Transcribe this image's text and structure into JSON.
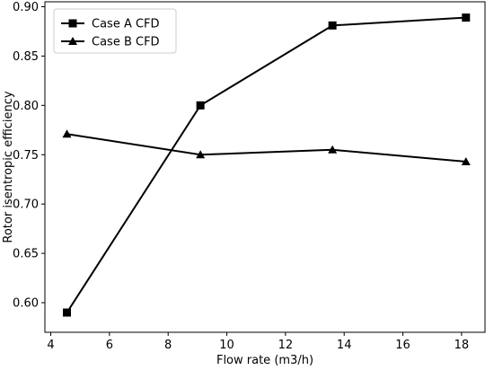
{
  "chart_data": {
    "type": "line",
    "title": "",
    "xlabel": "Flow rate (m3/h)",
    "ylabel": "Rotor isentropic efficiency",
    "xlim": [
      3.8,
      18.8
    ],
    "ylim": [
      0.57,
      0.905
    ],
    "xticks": [
      4,
      6,
      8,
      10,
      12,
      14,
      16,
      18
    ],
    "yticks": [
      0.6,
      0.65,
      0.7,
      0.75,
      0.8,
      0.85,
      0.9
    ],
    "grid": false,
    "legend_position": "upper-left",
    "series": [
      {
        "name": "Case A CFD",
        "marker": "square",
        "color": "#000000",
        "x": [
          4.55,
          9.1,
          13.6,
          18.15
        ],
        "y": [
          0.59,
          0.8,
          0.881,
          0.889
        ]
      },
      {
        "name": "Case B CFD",
        "marker": "triangle",
        "color": "#000000",
        "x": [
          4.55,
          9.1,
          13.6,
          18.15
        ],
        "y": [
          0.771,
          0.75,
          0.755,
          0.743
        ]
      }
    ]
  }
}
